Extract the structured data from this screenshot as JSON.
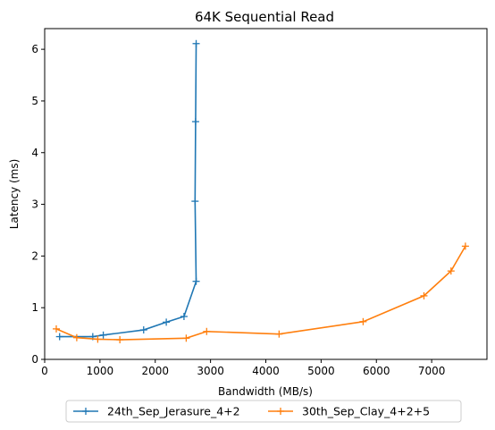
{
  "chart_data": {
    "type": "line",
    "title": "64K  Sequential Read",
    "xlabel": "Bandwidth (MB/s)",
    "ylabel": "Latency (ms)",
    "xlim": [
      0,
      8000
    ],
    "ylim": [
      0,
      6.4
    ],
    "xticks": [
      0,
      1000,
      2000,
      3000,
      4000,
      5000,
      6000,
      7000
    ],
    "yticks": [
      0,
      1,
      2,
      3,
      4,
      5,
      6
    ],
    "grid": false,
    "legend_position": "bottom-center",
    "series": [
      {
        "name": "24th_Sep_Jerasure_4+2",
        "color": "#1f77b4",
        "marker": "+",
        "x": [
          270,
          870,
          1060,
          1790,
          2200,
          2520,
          2740,
          2720,
          2730,
          2740
        ],
        "y": [
          0.44,
          0.44,
          0.47,
          0.57,
          0.72,
          0.83,
          1.51,
          3.06,
          4.6,
          6.11
        ]
      },
      {
        "name": "30th_Sep_Clay_4+2+5",
        "color": "#ff7f0e",
        "marker": "+",
        "x": [
          210,
          580,
          960,
          1360,
          2560,
          2930,
          4240,
          5760,
          6860,
          7350,
          7610
        ],
        "y": [
          0.59,
          0.42,
          0.39,
          0.38,
          0.41,
          0.54,
          0.49,
          0.73,
          1.23,
          1.71,
          2.19
        ]
      }
    ]
  }
}
